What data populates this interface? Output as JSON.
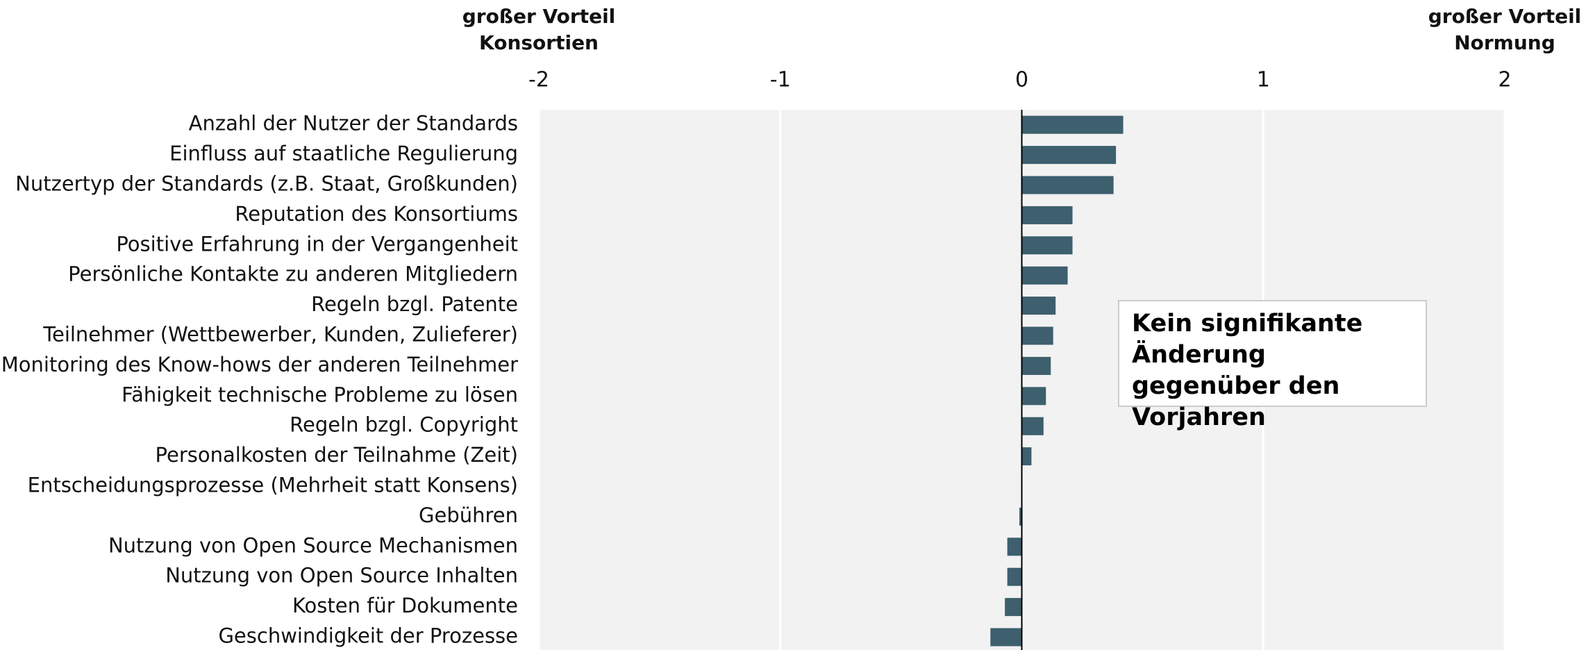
{
  "chart_data": {
    "type": "hbar",
    "left_label": [
      "großer Vorteil",
      "Konsortien"
    ],
    "right_label": [
      "großer Vorteil",
      "Normung"
    ],
    "annotation": "Kein signifikante Änderung gegenüber den Vorjahren",
    "categories": [
      "Anzahl der Nutzer der Standards",
      "Einfluss auf staatliche Regulierung",
      "Nutzertyp der Standards (z.B. Staat, Großkunden)",
      "Reputation des Konsortiums",
      "Positive Erfahrung in der Vergangenheit",
      "Persönliche Kontakte zu anderen Mitgliedern",
      "Regeln bzgl. Patente",
      "Teilnehmer (Wettbewerber, Kunden, Zulieferer)",
      "Monitoring des Know-hows der anderen Teilnehmer",
      "Fähigkeit technische Probleme zu lösen",
      "Regeln bzgl. Copyright",
      "Personalkosten der Teilnahme (Zeit)",
      "Entscheidungsprozesse (Mehrheit statt Konsens)",
      "Gebühren",
      "Nutzung von Open Source Mechanismen",
      "Nutzung von Open Source Inhalten",
      "Kosten für Dokumente",
      "Geschwindigkeit der Prozesse"
    ],
    "values": [
      0.42,
      0.39,
      0.38,
      0.21,
      0.21,
      0.19,
      0.14,
      0.13,
      0.12,
      0.1,
      0.09,
      0.04,
      0,
      -0.01,
      -0.06,
      -0.06,
      -0.07,
      -0.13
    ],
    "color": "#3d5f6e",
    "xlim": [
      -2,
      2
    ],
    "xticks": [
      -2,
      -1,
      0,
      1,
      2
    ],
    "grid": true
  }
}
